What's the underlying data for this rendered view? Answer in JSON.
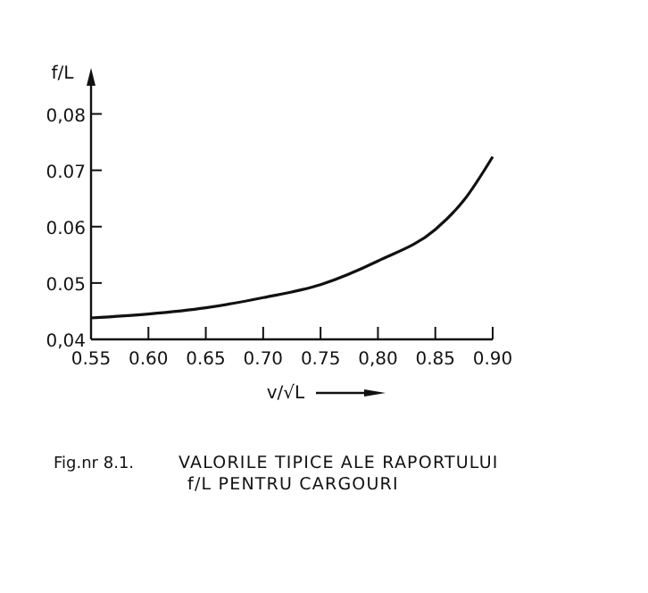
{
  "chart_data": {
    "type": "line",
    "xlabel": "v/√L",
    "ylabel": "f/L",
    "x": [
      0.55,
      0.6,
      0.65,
      0.7,
      0.75,
      0.8,
      0.85,
      0.875,
      0.9
    ],
    "series": [
      {
        "color": "#111111",
        "values": [
          0.0438,
          0.0445,
          0.0456,
          0.0474,
          0.0497,
          0.0539,
          0.0595,
          0.0647,
          0.0724
        ]
      }
    ],
    "xlim": [
      0.55,
      0.9
    ],
    "ylim": [
      0.04,
      0.085
    ],
    "xticks": [
      0.55,
      {
        "value": 0.6,
        "label": "0.60"
      },
      0.65,
      {
        "value": 0.7,
        "label": "0.70"
      },
      0.75,
      {
        "value": 0.8,
        "label": "0,80"
      },
      0.85,
      {
        "value": 0.9,
        "label": "0.90"
      }
    ],
    "yticks": [
      {
        "value": 0.04,
        "label": "0,04"
      },
      0.05,
      0.06,
      0.07,
      {
        "value": 0.08,
        "label": "0,08"
      }
    ],
    "grid": false,
    "marker": "none",
    "line_style": "solid",
    "annotations": [
      "Fig.nr 8.1.",
      "VALORILE TIPICE ALE RAPORTULUI",
      "f/L PENTRU CARGOURI"
    ]
  }
}
